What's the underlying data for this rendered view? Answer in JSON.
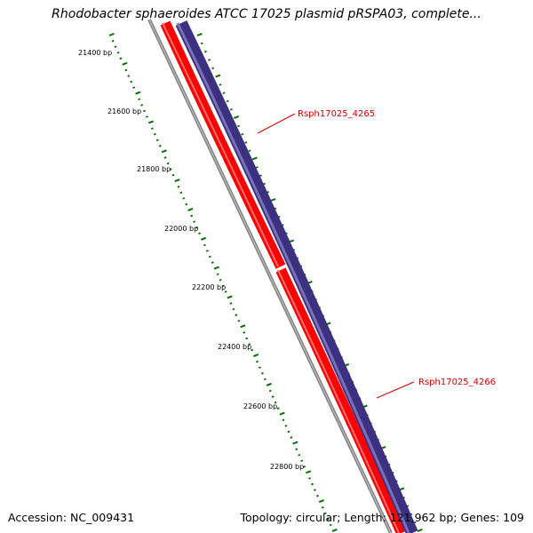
{
  "title": "Rhodobacter sphaeroides ATCC 17025 plasmid pRSPA03, complete...",
  "accession": "Accession: NC_009431",
  "summary": "Topology: circular; Length: 121,962 bp; Genes: 109",
  "colors": {
    "backbone": "#808080",
    "gene_forward": "#ff0000",
    "gene_reverse": "#3c3080",
    "ticks": "#007000",
    "gene_label": "#cc0000"
  },
  "ruler": {
    "unit": "bp",
    "labels": [
      "21400 bp",
      "21600 bp",
      "21800 bp",
      "22000 bp",
      "22200 bp",
      "22400 bp",
      "22600 bp",
      "22800 bp"
    ]
  },
  "genes": [
    {
      "name": "Rsph17025_4265",
      "strand": "reverse"
    },
    {
      "name": "Rsph17025_4266",
      "strand": "reverse"
    }
  ]
}
